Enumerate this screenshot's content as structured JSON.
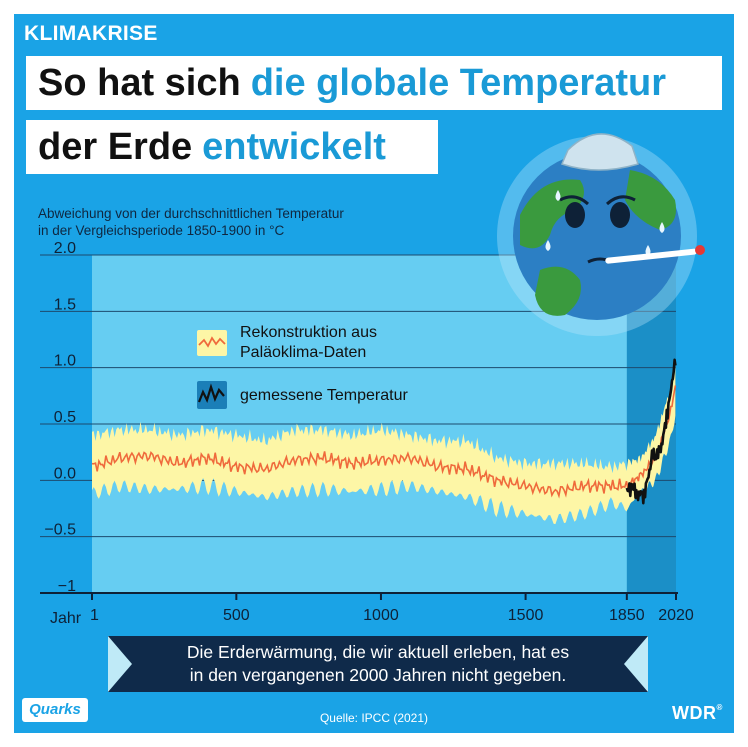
{
  "kicker": "KLIMAKRISE",
  "headline": {
    "line1_plain": "So hat sich",
    "line1_accent": "die globale Temperatur",
    "line2_plain": "der Erde",
    "line2_accent": "entwickelt"
  },
  "subtitle": {
    "line1": "Abweichung von der durchschnittlichen Temperatur",
    "line2": "in der Vergleichsperiode 1850-1900 in °C"
  },
  "legend": {
    "reconstruction": [
      "Rekonstruktion aus",
      "Paläoklima-Daten"
    ],
    "measured": "gemessene Temperatur"
  },
  "banner": {
    "line1": "Die Erderwärmung, die wir aktuell erleben, hat es",
    "line2": "in den vergangenen 2000 Jahren nicht gegeben."
  },
  "source": "Quelle:  IPCC (2021)",
  "brand_left": "Quarks",
  "brand_right": "WDR",
  "colors": {
    "panel": "#1aa3e6",
    "plot_bg": "#66cdf2",
    "modern_band": "#1b8fc7",
    "band_fill": "#fdf6a6",
    "reconstruction_line": "#ef6a3c",
    "measured_line": "#111111",
    "banner": "#0f2a4a"
  },
  "chart_data": {
    "type": "line",
    "ylabel": "",
    "xlabel": "Jahr",
    "xlim": [
      1,
      2020
    ],
    "ylim": [
      -1,
      2
    ],
    "y_ticks": [
      "2.0",
      "1.5",
      "1.0",
      "0.5",
      "0.0",
      "−0.5",
      "−1"
    ],
    "x_ticks": [
      "1",
      "500",
      "1000",
      "1500",
      "1850",
      "2020"
    ],
    "highlight_range": [
      1850,
      2020
    ],
    "series": [
      {
        "name": "Rekonstruktion aus Paläoklima-Daten",
        "x": [
          1,
          100,
          200,
          300,
          400,
          500,
          600,
          700,
          800,
          900,
          1000,
          1100,
          1200,
          1300,
          1400,
          1500,
          1600,
          1700,
          1800,
          1850,
          1900,
          1950,
          2000,
          2020
        ],
        "values": [
          0.12,
          0.2,
          0.22,
          0.15,
          0.2,
          0.12,
          0.1,
          0.18,
          0.2,
          0.15,
          0.18,
          0.2,
          0.12,
          0.1,
          0.0,
          -0.05,
          -0.1,
          -0.05,
          -0.05,
          -0.05,
          0.05,
          0.2,
          0.6,
          0.85
        ],
        "lower": [
          -0.12,
          -0.05,
          -0.08,
          -0.08,
          -0.05,
          -0.1,
          -0.15,
          -0.1,
          -0.08,
          -0.1,
          -0.08,
          -0.05,
          -0.1,
          -0.15,
          -0.25,
          -0.3,
          -0.35,
          -0.3,
          -0.2,
          -0.25,
          -0.1,
          0.0,
          0.35,
          0.6
        ],
        "upper": [
          0.4,
          0.45,
          0.45,
          0.4,
          0.45,
          0.4,
          0.35,
          0.45,
          0.45,
          0.4,
          0.45,
          0.4,
          0.35,
          0.35,
          0.2,
          0.15,
          0.15,
          0.15,
          0.12,
          0.15,
          0.2,
          0.4,
          0.8,
          1.05
        ]
      },
      {
        "name": "gemessene Temperatur",
        "x": [
          1850,
          1870,
          1890,
          1900,
          1910,
          1920,
          1930,
          1940,
          1950,
          1960,
          1970,
          1980,
          1990,
          2000,
          2010,
          2020
        ],
        "values": [
          -0.1,
          -0.05,
          -0.15,
          -0.1,
          -0.15,
          0.0,
          0.1,
          0.25,
          0.2,
          0.25,
          0.3,
          0.45,
          0.6,
          0.75,
          0.95,
          1.1
        ]
      }
    ]
  }
}
